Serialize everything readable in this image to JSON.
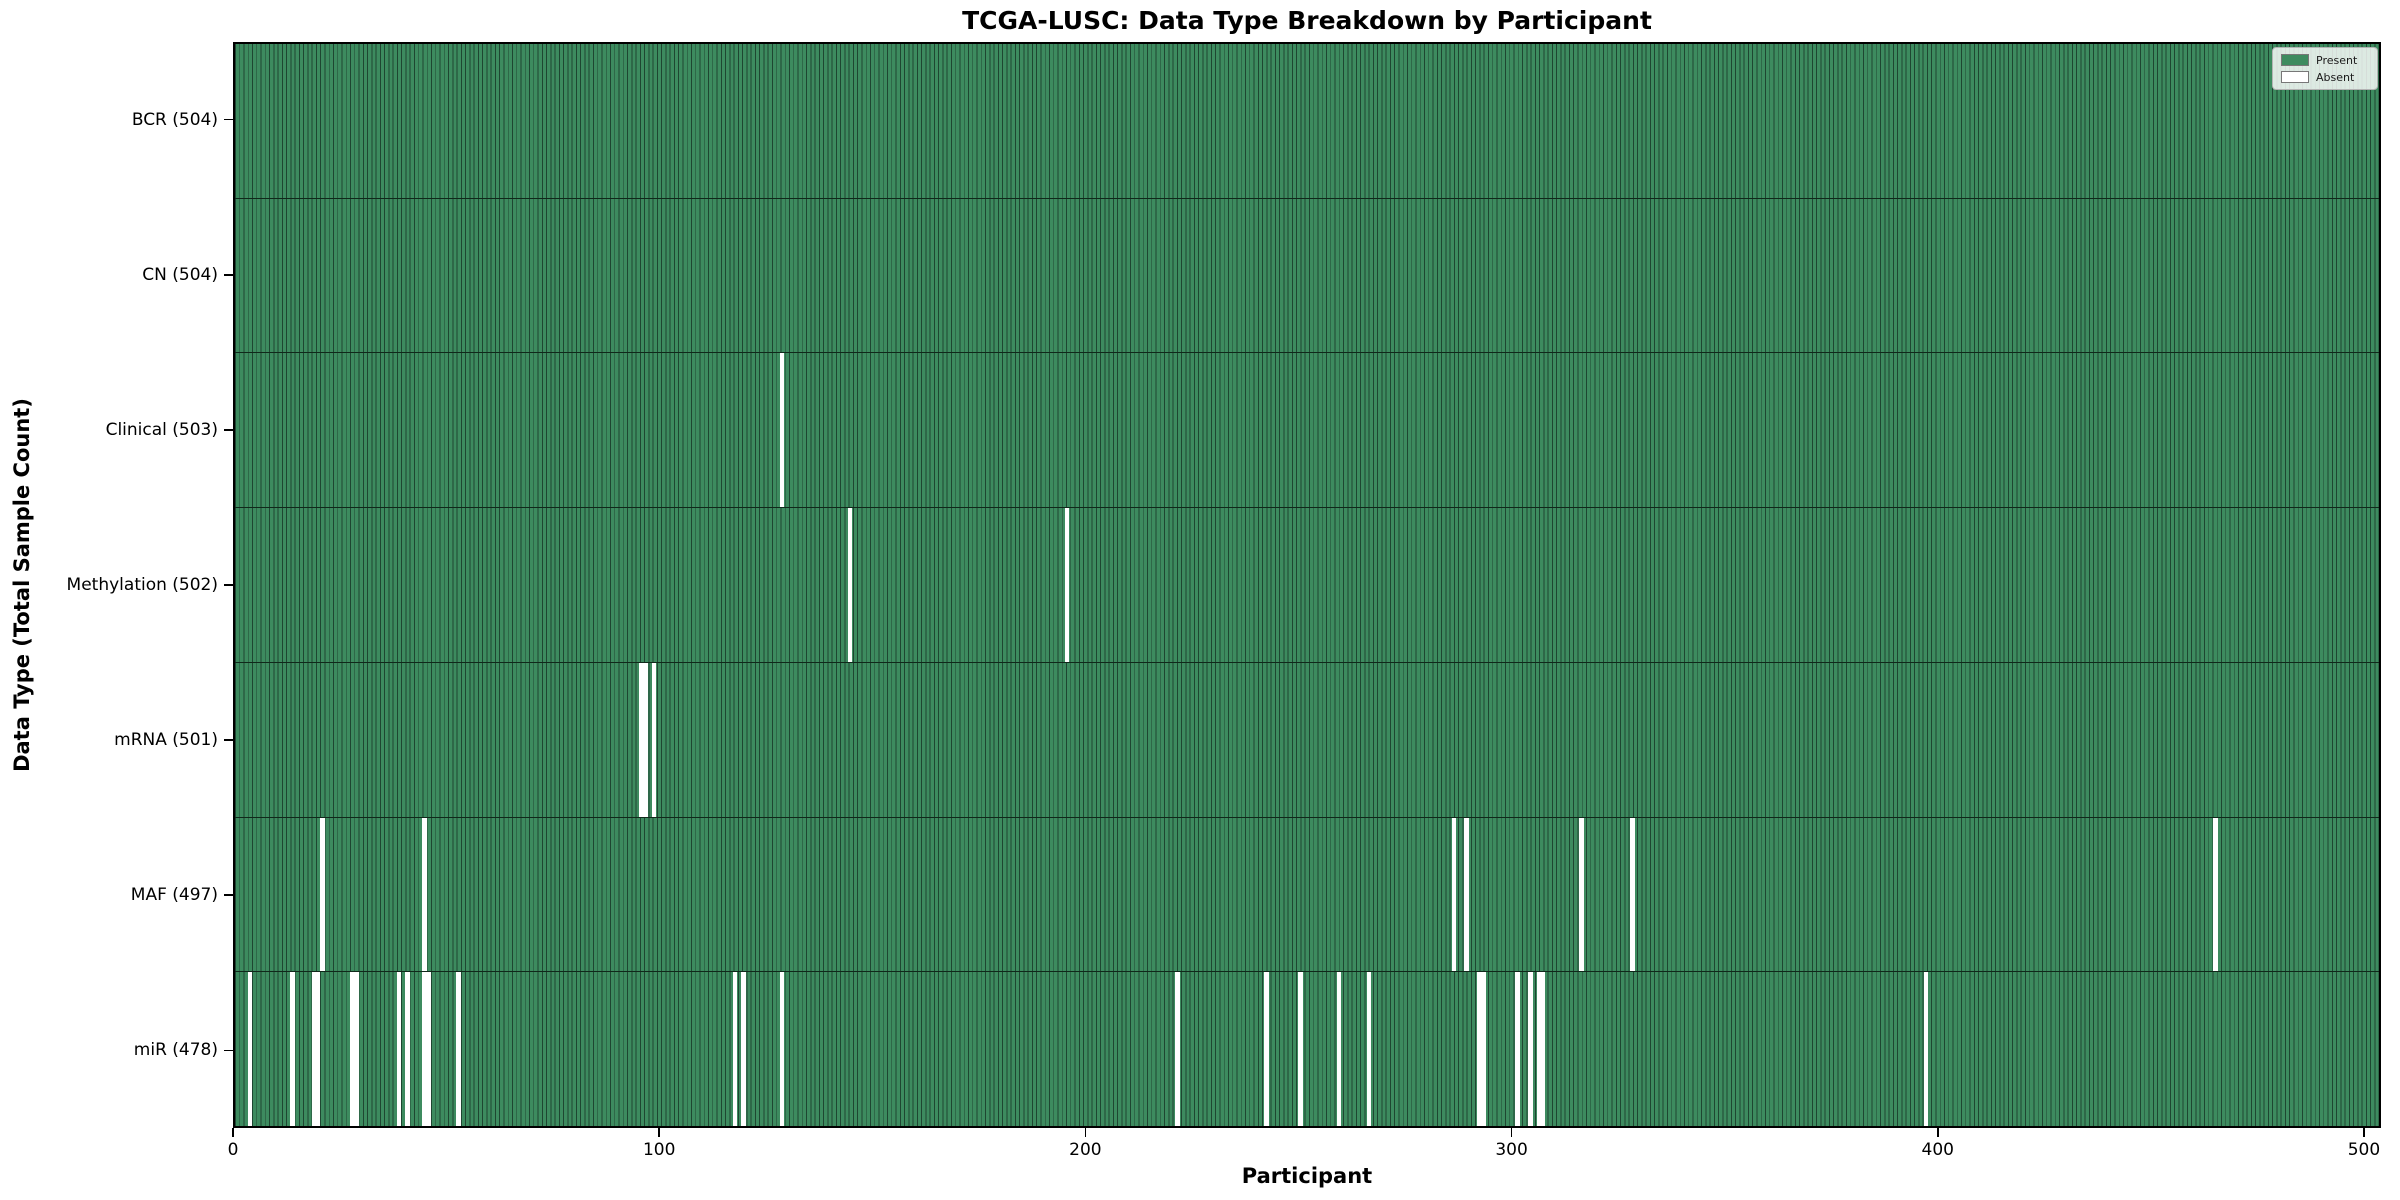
{
  "title": "TCGA-LUSC: Data Type Breakdown by Participant",
  "chart_data": {
    "type": "heatmap",
    "title": "TCGA-LUSC: Data Type Breakdown by Participant",
    "xlabel": "Participant",
    "ylabel": "Data Type (Total Sample Count)",
    "x_ticks": [
      0,
      100,
      200,
      300,
      400,
      500
    ],
    "x_range": [
      0,
      504
    ],
    "n_participants": 504,
    "grid": false,
    "legend": {
      "position": "upper right",
      "entries": [
        {
          "label": "Present",
          "color": "#3d8b5f"
        },
        {
          "label": "Absent",
          "color": "#ffffff"
        }
      ]
    },
    "colors": {
      "present_fill": "#3d8b5f",
      "bar_edge": "#1e4631",
      "absent_fill": "#ffffff",
      "axis": "#000000"
    },
    "rows": [
      {
        "name": "BCR",
        "label": "BCR (504)",
        "total": 504,
        "absent_participants": []
      },
      {
        "name": "CN",
        "label": "CN (504)",
        "total": 504,
        "absent_participants": []
      },
      {
        "name": "Clinical",
        "label": "Clinical (503)",
        "total": 503,
        "absent_participants": [
          128
        ]
      },
      {
        "name": "Methylation",
        "label": "Methylation (502)",
        "total": 502,
        "absent_participants": [
          144,
          195
        ]
      },
      {
        "name": "mRNA",
        "label": "mRNA (501)",
        "total": 501,
        "absent_participants": [
          95,
          96,
          98
        ]
      },
      {
        "name": "MAF",
        "label": "MAF (497)",
        "total": 497,
        "absent_participants": [
          20,
          44,
          286,
          289,
          316,
          328,
          465
        ]
      },
      {
        "name": "miR",
        "label": "miR (478)",
        "total": 478,
        "absent_participants": [
          3,
          13,
          18,
          19,
          27,
          28,
          38,
          40,
          44,
          45,
          52,
          117,
          119,
          128,
          221,
          242,
          250,
          259,
          266,
          292,
          293,
          301,
          304,
          306,
          307,
          397
        ]
      }
    ]
  }
}
